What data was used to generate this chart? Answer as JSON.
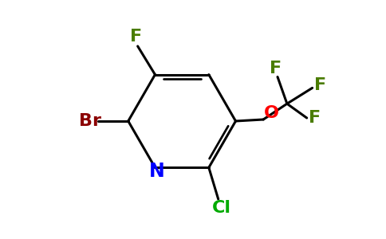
{
  "bg_color": "#ffffff",
  "bond_color": "#000000",
  "atom_colors": {
    "F": "#4a7c00",
    "Br": "#8b0000",
    "N": "#0000ff",
    "O": "#ff0000",
    "Cl": "#00aa00"
  },
  "figsize": [
    4.84,
    3.0
  ],
  "dpi": 100,
  "font_size": 16,
  "font_weight": "bold"
}
